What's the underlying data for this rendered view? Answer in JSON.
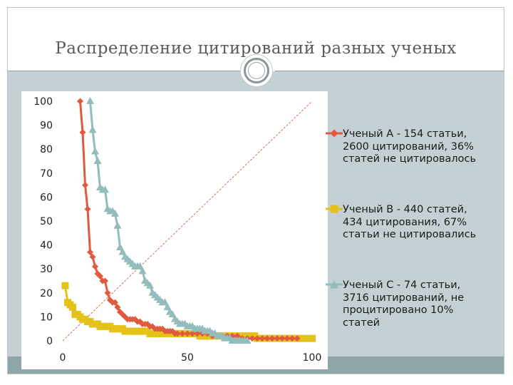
{
  "slide": {
    "title": "Распределение цитирований разных ученых"
  },
  "colors": {
    "series_a": "#e05a3f",
    "series_b": "#e4c21a",
    "series_c": "#93bcbc",
    "reference_line": "#d2705a"
  },
  "icons": {
    "emblem": "circle-emblem-icon"
  },
  "chart_data": {
    "type": "scatter",
    "xlim": [
      0,
      100
    ],
    "ylim": [
      0,
      100
    ],
    "x_ticks": [
      "0",
      "50",
      "100"
    ],
    "y_ticks": [
      "0",
      "10",
      "20",
      "30",
      "40",
      "50",
      "60",
      "70",
      "80",
      "90",
      "100"
    ],
    "legend_position": "right",
    "grid": false,
    "reference_line": {
      "from": [
        0,
        0
      ],
      "to": [
        100,
        100
      ],
      "style": "dashed"
    },
    "series": [
      {
        "name": "Ученый А - 154 статьи, 2600 цитирований, 36% статей не цитировалось",
        "marker": "diamond",
        "points": [
          [
            7,
            100
          ],
          [
            8,
            87
          ],
          [
            9,
            65
          ],
          [
            10,
            55
          ],
          [
            11,
            37
          ],
          [
            12,
            35
          ],
          [
            13,
            31
          ],
          [
            14,
            28
          ],
          [
            15,
            27
          ],
          [
            16,
            25
          ],
          [
            17,
            25
          ],
          [
            18,
            20
          ],
          [
            19,
            17
          ],
          [
            20,
            16
          ],
          [
            21,
            16
          ],
          [
            22,
            14
          ],
          [
            23,
            12
          ],
          [
            24,
            11
          ],
          [
            25,
            10
          ],
          [
            26,
            9
          ],
          [
            27,
            9
          ],
          [
            28,
            9
          ],
          [
            29,
            9
          ],
          [
            30,
            8
          ],
          [
            31,
            8
          ],
          [
            32,
            7
          ],
          [
            33,
            7
          ],
          [
            34,
            7
          ],
          [
            35,
            6
          ],
          [
            36,
            6
          ],
          [
            37,
            5
          ],
          [
            38,
            5
          ],
          [
            39,
            5
          ],
          [
            40,
            5
          ],
          [
            41,
            4
          ],
          [
            42,
            4
          ],
          [
            43,
            4
          ],
          [
            44,
            4
          ],
          [
            45,
            3
          ],
          [
            46,
            3
          ],
          [
            48,
            3
          ],
          [
            50,
            3
          ],
          [
            52,
            3
          ],
          [
            54,
            3
          ],
          [
            56,
            3
          ],
          [
            58,
            3
          ],
          [
            60,
            2
          ],
          [
            62,
            2
          ],
          [
            64,
            2
          ],
          [
            66,
            2
          ],
          [
            68,
            2
          ],
          [
            70,
            2
          ],
          [
            72,
            1
          ],
          [
            74,
            1
          ],
          [
            76,
            1
          ],
          [
            78,
            1
          ],
          [
            80,
            1
          ],
          [
            82,
            1
          ],
          [
            84,
            1
          ],
          [
            86,
            1
          ],
          [
            88,
            1
          ],
          [
            90,
            1
          ],
          [
            92,
            1
          ],
          [
            94,
            1
          ]
        ]
      },
      {
        "name": "Ученый В - 440 статей, 434 цитирования, 67% статьи не цитировались",
        "marker": "square",
        "points": [
          [
            1,
            23
          ],
          [
            2,
            16
          ],
          [
            3,
            15
          ],
          [
            4,
            14
          ],
          [
            5,
            11
          ],
          [
            6,
            11
          ],
          [
            7,
            10
          ],
          [
            8,
            9
          ],
          [
            9,
            9
          ],
          [
            10,
            8
          ],
          [
            11,
            8
          ],
          [
            12,
            7
          ],
          [
            13,
            7
          ],
          [
            14,
            7
          ],
          [
            15,
            6
          ],
          [
            16,
            6
          ],
          [
            17,
            6
          ],
          [
            18,
            6
          ],
          [
            19,
            6
          ],
          [
            20,
            5
          ],
          [
            21,
            5
          ],
          [
            22,
            5
          ],
          [
            23,
            5
          ],
          [
            24,
            5
          ],
          [
            25,
            4
          ],
          [
            26,
            4
          ],
          [
            27,
            4
          ],
          [
            28,
            4
          ],
          [
            29,
            4
          ],
          [
            30,
            4
          ],
          [
            31,
            4
          ],
          [
            32,
            4
          ],
          [
            33,
            4
          ],
          [
            34,
            4
          ],
          [
            35,
            3
          ],
          [
            36,
            3
          ],
          [
            37,
            3
          ],
          [
            38,
            3
          ],
          [
            39,
            3
          ],
          [
            40,
            3
          ],
          [
            41,
            3
          ],
          [
            42,
            3
          ],
          [
            43,
            3
          ],
          [
            44,
            3
          ],
          [
            45,
            3
          ],
          [
            46,
            3
          ],
          [
            47,
            3
          ],
          [
            48,
            3
          ],
          [
            49,
            3
          ],
          [
            50,
            3
          ],
          [
            51,
            3
          ],
          [
            52,
            3
          ],
          [
            53,
            3
          ],
          [
            54,
            3
          ],
          [
            55,
            2
          ],
          [
            56,
            2
          ],
          [
            57,
            2
          ],
          [
            58,
            2
          ],
          [
            59,
            2
          ],
          [
            60,
            2
          ],
          [
            61,
            2
          ],
          [
            62,
            2
          ],
          [
            63,
            2
          ],
          [
            64,
            2
          ],
          [
            65,
            2
          ],
          [
            66,
            2
          ],
          [
            67,
            2
          ],
          [
            68,
            2
          ],
          [
            69,
            2
          ],
          [
            70,
            2
          ],
          [
            71,
            2
          ],
          [
            72,
            2
          ],
          [
            73,
            2
          ],
          [
            74,
            2
          ],
          [
            75,
            2
          ],
          [
            76,
            2
          ],
          [
            77,
            2
          ],
          [
            78,
            1
          ],
          [
            80,
            1
          ],
          [
            82,
            1
          ],
          [
            84,
            1
          ],
          [
            86,
            1
          ],
          [
            88,
            1
          ],
          [
            90,
            1
          ],
          [
            92,
            1
          ],
          [
            94,
            1
          ],
          [
            96,
            1
          ],
          [
            98,
            1
          ],
          [
            100,
            1
          ]
        ]
      },
      {
        "name": "Ученый С - 74 статьи, 3716 цитирований, не процитировано 10% статей",
        "marker": "triangle",
        "points": [
          [
            11,
            100
          ],
          [
            12,
            88
          ],
          [
            13,
            79
          ],
          [
            14,
            75
          ],
          [
            15,
            64
          ],
          [
            16,
            63
          ],
          [
            17,
            63
          ],
          [
            18,
            55
          ],
          [
            19,
            54
          ],
          [
            20,
            54
          ],
          [
            21,
            53
          ],
          [
            22,
            48
          ],
          [
            23,
            39
          ],
          [
            24,
            37
          ],
          [
            25,
            35
          ],
          [
            26,
            34
          ],
          [
            27,
            33
          ],
          [
            28,
            32
          ],
          [
            29,
            31
          ],
          [
            30,
            31
          ],
          [
            31,
            31
          ],
          [
            32,
            29
          ],
          [
            33,
            25
          ],
          [
            34,
            24
          ],
          [
            35,
            23
          ],
          [
            36,
            20
          ],
          [
            37,
            19
          ],
          [
            38,
            18
          ],
          [
            39,
            17
          ],
          [
            40,
            16
          ],
          [
            41,
            16
          ],
          [
            42,
            14
          ],
          [
            43,
            12
          ],
          [
            44,
            11
          ],
          [
            45,
            9
          ],
          [
            46,
            8
          ],
          [
            47,
            7
          ],
          [
            48,
            7
          ],
          [
            49,
            7
          ],
          [
            50,
            6
          ],
          [
            51,
            6
          ],
          [
            52,
            6
          ],
          [
            53,
            5
          ],
          [
            54,
            5
          ],
          [
            55,
            5
          ],
          [
            56,
            5
          ],
          [
            57,
            4
          ],
          [
            58,
            4
          ],
          [
            59,
            4
          ],
          [
            60,
            3
          ],
          [
            61,
            3
          ],
          [
            62,
            2
          ],
          [
            63,
            2
          ],
          [
            64,
            2
          ],
          [
            65,
            1
          ],
          [
            66,
            1
          ],
          [
            67,
            1
          ],
          [
            68,
            0
          ],
          [
            69,
            0
          ],
          [
            70,
            0
          ],
          [
            71,
            0
          ],
          [
            72,
            0
          ],
          [
            73,
            0
          ],
          [
            74,
            0
          ]
        ]
      }
    ]
  }
}
